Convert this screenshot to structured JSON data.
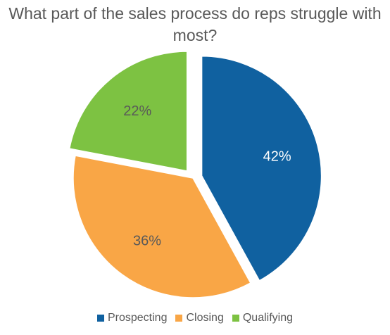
{
  "chart_data": {
    "type": "pie",
    "title": "What part of the sales process do reps struggle with\nmost?",
    "slices": [
      {
        "label": "Prospecting",
        "value": 42,
        "display": "42%",
        "color": "#1061a0",
        "exploded": true,
        "label_color": "#ffffff"
      },
      {
        "label": "Closing",
        "value": 36,
        "display": "36%",
        "color": "#f9a646",
        "exploded": false,
        "label_color": "#595959"
      },
      {
        "label": "Qualifying",
        "value": 22,
        "display": "22%",
        "color": "#7dc242",
        "exploded": true,
        "label_color": "#595959"
      }
    ],
    "legend_position": "bottom",
    "start_angle": "top, clockwise"
  }
}
